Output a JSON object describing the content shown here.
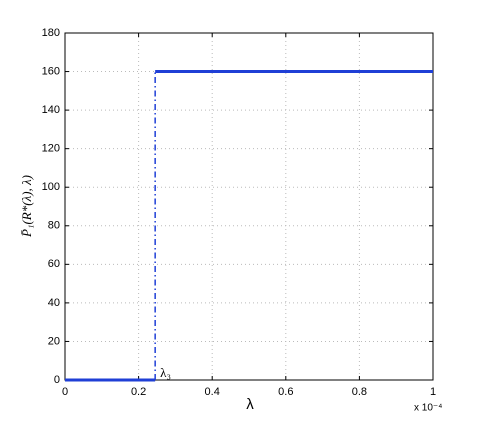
{
  "chart_data": {
    "type": "line",
    "x_label": "λ",
    "y_label": "P̄₁(R*(λ), λ)",
    "x_exponent_label": "x 10⁻⁴",
    "annotations": [
      "λ₃"
    ],
    "series": [
      {
        "color": "#1f3fd6",
        "style": "solid",
        "x": [
          0,
          0.245
        ],
        "values": [
          0,
          0
        ]
      },
      {
        "color": "#1f3fd6",
        "style": "dashdot",
        "x": [
          0.245,
          0.245
        ],
        "values": [
          0,
          160
        ]
      },
      {
        "color": "#1f3fd6",
        "style": "solid",
        "x": [
          0.245,
          1
        ],
        "values": [
          160,
          160
        ]
      }
    ],
    "xlim": [
      0,
      1
    ],
    "xticks": [
      0,
      0.2,
      0.4,
      0.6,
      0.8,
      1
    ],
    "ylim": [
      0,
      180
    ],
    "yticks": [
      0,
      20,
      40,
      60,
      80,
      100,
      120,
      140,
      160,
      180
    ],
    "grid": true
  }
}
